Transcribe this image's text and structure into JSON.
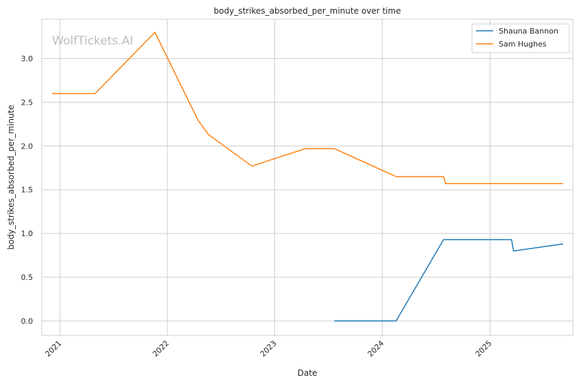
{
  "chart_data": {
    "type": "line",
    "title": "body_strikes_absorbed_per_minute over time",
    "xlabel": "Date",
    "ylabel": "body_strikes_absorbed_per_minute",
    "watermark": "WolfTickets.AI",
    "x_ticks": [
      "2021",
      "2022",
      "2023",
      "2024",
      "2025"
    ],
    "y_ticks": [
      "0.0",
      "0.5",
      "1.0",
      "1.5",
      "2.0",
      "2.5",
      "3.0"
    ],
    "xlim": [
      "2020-11-01",
      "2025-10-09"
    ],
    "ylim": [
      -0.165,
      3.45
    ],
    "grid": true,
    "legend_position": "top-right",
    "series": [
      {
        "name": "Shauna Bannon",
        "color": "#1f77b4",
        "points": [
          [
            "2023-07-22",
            0.0
          ],
          [
            "2024-02-17",
            0.0
          ],
          [
            "2024-07-27",
            0.93
          ],
          [
            "2025-03-15",
            0.93
          ],
          [
            "2025-03-22",
            0.8
          ],
          [
            "2025-09-06",
            0.88
          ]
        ]
      },
      {
        "name": "Sam Hughes",
        "color": "#ff7f0e",
        "points": [
          [
            "2020-12-05",
            2.6
          ],
          [
            "2021-05-01",
            2.6
          ],
          [
            "2021-11-20",
            3.3
          ],
          [
            "2022-04-16",
            2.29
          ],
          [
            "2022-05-21",
            2.13
          ],
          [
            "2022-10-15",
            1.77
          ],
          [
            "2023-04-15",
            1.97
          ],
          [
            "2023-07-22",
            1.97
          ],
          [
            "2024-02-17",
            1.65
          ],
          [
            "2024-07-27",
            1.65
          ],
          [
            "2024-08-03",
            1.57
          ],
          [
            "2025-09-06",
            1.57
          ]
        ]
      }
    ]
  }
}
